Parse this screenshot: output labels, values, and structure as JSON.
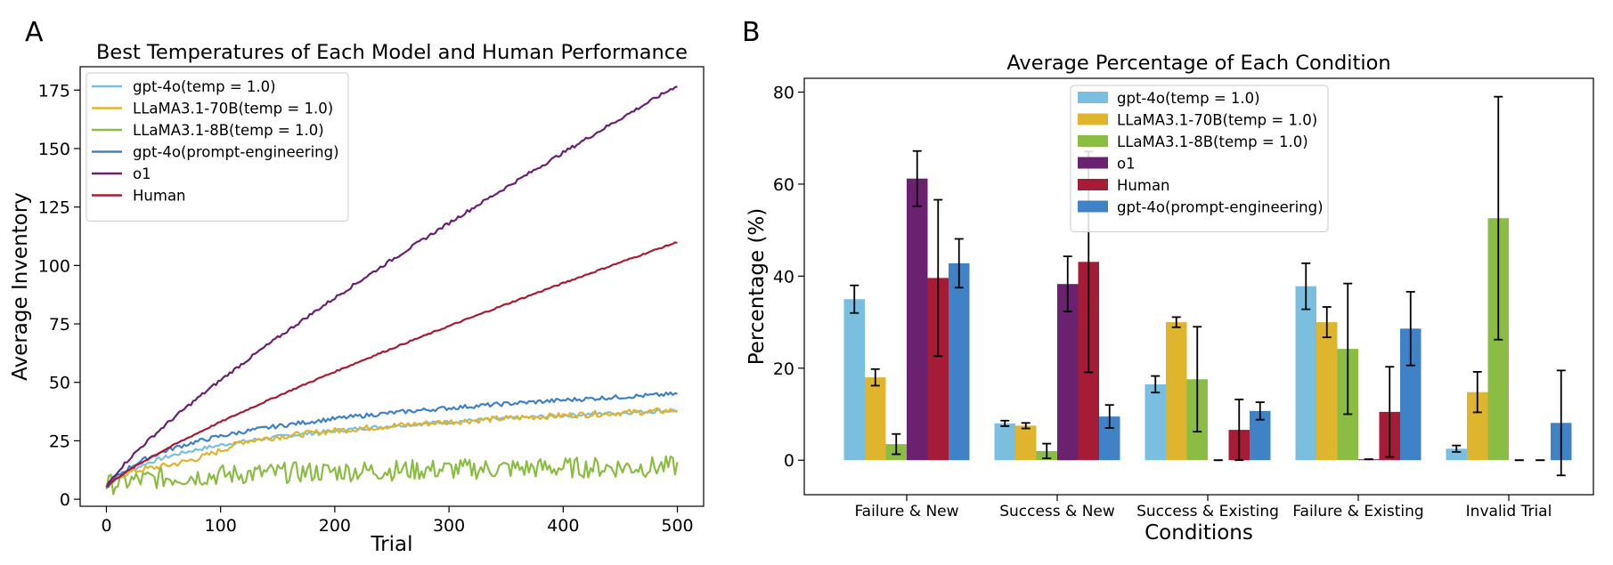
{
  "chart_data": [
    {
      "panel": "A",
      "type": "line",
      "title": "Best Temperatures of Each Model and Human Performance",
      "xlabel": "Trial",
      "ylabel": "Average Inventory",
      "xlim": [
        -23,
        523
      ],
      "ylim": [
        -3,
        185
      ],
      "xticks": [
        0,
        100,
        200,
        300,
        400,
        500
      ],
      "yticks": [
        0,
        25,
        50,
        75,
        100,
        125,
        150,
        175
      ],
      "legend_position": "top-left",
      "series": [
        {
          "name": "gpt-4o(temp = 1.0)",
          "color": "#7bbfe0",
          "kind": "log",
          "start": 5,
          "end": 38,
          "noise": 0.8
        },
        {
          "name": "LLaMA3.1-70B(temp = 1.0)",
          "color": "#dfb52e",
          "kind": "log",
          "start": 5,
          "end": 38,
          "noise": 1.3,
          "early_dip": true
        },
        {
          "name": "LLaMA3.1-8B(temp = 1.0)",
          "color": "#8bbd44",
          "kind": "log",
          "start": 6,
          "end": 14,
          "noise": 4.5
        },
        {
          "name": "gpt-4o(prompt-engineering)",
          "color": "#3f82c6",
          "kind": "log",
          "start": 5,
          "end": 45,
          "noise": 0.9
        },
        {
          "name": "o1",
          "color": "#6a2270",
          "kind": "power",
          "start": 5,
          "end": 177,
          "noise": 0.7
        },
        {
          "name": "Human",
          "color": "#a61c36",
          "kind": "power",
          "start": 5,
          "end": 110,
          "noise": 0.3
        }
      ]
    },
    {
      "panel": "B",
      "type": "bar",
      "title": "Average Percentage of Each Condition",
      "xlabel": "Conditions",
      "ylabel": "Percentage (%)",
      "ylim": [
        -7.5,
        83
      ],
      "yticks": [
        0,
        20,
        40,
        60,
        80
      ],
      "legend_position": "top-center",
      "categories": [
        "Failure & New",
        "Success & New",
        "Success & Existing",
        "Failure & Existing",
        "Invalid Trial"
      ],
      "series": [
        {
          "name": "gpt-4o(temp = 1.0)",
          "color": "#7bbfe0",
          "values": [
            35.0,
            8.0,
            16.5,
            37.8,
            2.5
          ],
          "errors": [
            3.0,
            0.6,
            1.8,
            5.0,
            0.7
          ]
        },
        {
          "name": "LLaMA3.1-70B(temp = 1.0)",
          "color": "#dfb52e",
          "values": [
            18.0,
            7.5,
            30.0,
            30.0,
            14.8
          ],
          "errors": [
            1.8,
            0.6,
            1.1,
            3.3,
            4.4
          ]
        },
        {
          "name": "LLaMA3.1-8B(temp = 1.0)",
          "color": "#8bbd44",
          "values": [
            3.5,
            2.0,
            17.6,
            24.2,
            52.6
          ],
          "errors": [
            2.2,
            1.6,
            11.4,
            14.2,
            26.4
          ]
        },
        {
          "name": "o1",
          "color": "#6a2270",
          "values": [
            61.2,
            38.3,
            0.0,
            0.2,
            0.0
          ],
          "errors": [
            6.0,
            6.0,
            0.0,
            0.0,
            0.0
          ]
        },
        {
          "name": "Human",
          "color": "#a61c36",
          "values": [
            39.6,
            43.1,
            6.6,
            10.5,
            0.0
          ],
          "errors": [
            17.0,
            24.0,
            6.6,
            9.8,
            0.0
          ]
        },
        {
          "name": "gpt-4o(prompt-engineering)",
          "color": "#3f82c6",
          "values": [
            42.8,
            9.5,
            10.7,
            28.6,
            8.1
          ],
          "errors": [
            5.3,
            2.5,
            1.9,
            8.0,
            11.4
          ]
        }
      ]
    }
  ]
}
